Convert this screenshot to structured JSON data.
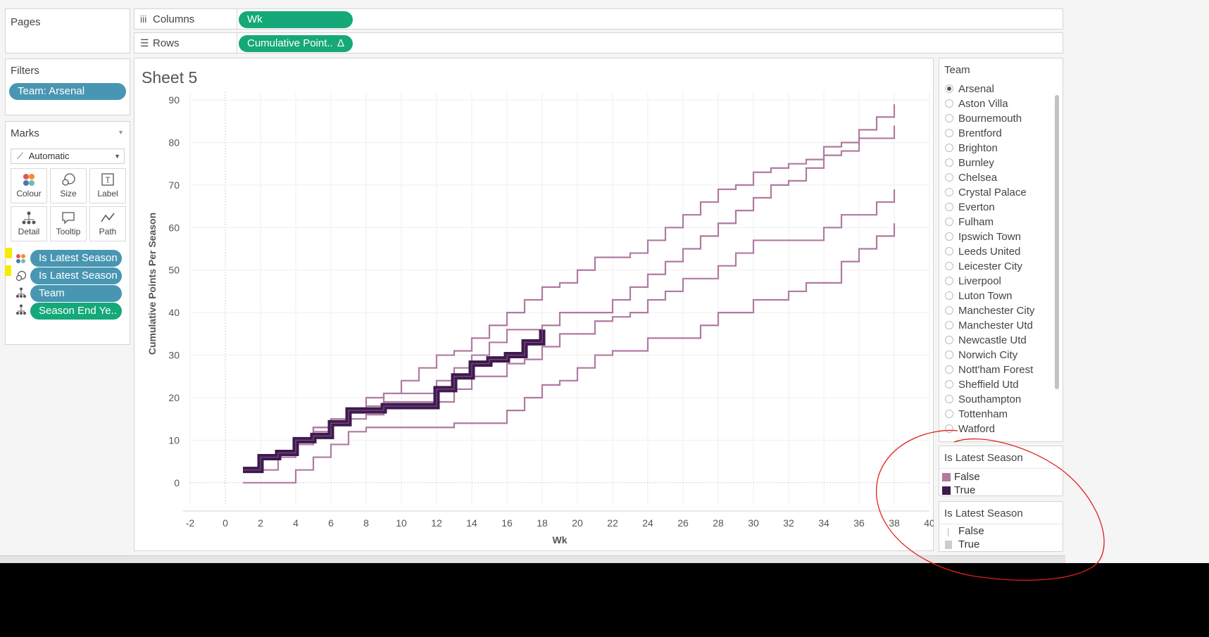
{
  "shelves": {
    "columns": {
      "label": "Columns",
      "pill": "Wk"
    },
    "rows": {
      "label": "Rows",
      "pill": "Cumulative Point..",
      "delta_icon": "Δ"
    }
  },
  "pages": {
    "title": "Pages"
  },
  "filters": {
    "title": "Filters",
    "items": [
      "Team: Arsenal"
    ]
  },
  "marks": {
    "title": "Marks",
    "type": "Automatic",
    "buttons": [
      {
        "label": "Colour",
        "icon": "colour-icon"
      },
      {
        "label": "Size",
        "icon": "size-icon"
      },
      {
        "label": "Label",
        "icon": "label-icon"
      },
      {
        "label": "Detail",
        "icon": "detail-icon"
      },
      {
        "label": "Tooltip",
        "icon": "tooltip-icon"
      },
      {
        "label": "Path",
        "icon": "path-icon"
      }
    ],
    "fields": [
      {
        "label": "Is Latest Season",
        "icon": "colour-icon",
        "color": "blue"
      },
      {
        "label": "Is Latest Season",
        "icon": "size-icon",
        "color": "blue"
      },
      {
        "label": "Team",
        "icon": "detail-icon",
        "color": "blue"
      },
      {
        "label": "Season End Ye..",
        "icon": "detail-icon",
        "color": "green"
      }
    ]
  },
  "sheet": {
    "title": "Sheet 5"
  },
  "team_filter": {
    "title": "Team",
    "selected": "Arsenal",
    "items": [
      "Arsenal",
      "Aston Villa",
      "Bournemouth",
      "Brentford",
      "Brighton",
      "Burnley",
      "Chelsea",
      "Crystal Palace",
      "Everton",
      "Fulham",
      "Ipswich Town",
      "Leeds United",
      "Leicester City",
      "Liverpool",
      "Luton Town",
      "Manchester City",
      "Manchester Utd",
      "Newcastle Utd",
      "Norwich City",
      "Nott'ham Forest",
      "Sheffield Utd",
      "Southampton",
      "Tottenham",
      "Watford"
    ]
  },
  "colour_legend": {
    "title": "Is Latest Season",
    "items": [
      {
        "label": "False",
        "color": "#b07aa1"
      },
      {
        "label": "True",
        "color": "#3d1a4f"
      }
    ]
  },
  "size_legend": {
    "title": "Is Latest Season",
    "items": [
      {
        "label": "False"
      },
      {
        "label": "True"
      }
    ]
  },
  "colors": {
    "accent_blue": "#4996b2",
    "accent_green": "#15a878",
    "false_series": "#b07aa1",
    "true_series": "#3d1a4f",
    "annotation": "#e0201a"
  },
  "chart_data": {
    "type": "line",
    "step": true,
    "xlabel": "Wk",
    "ylabel": "Cumulative Points Per Season",
    "xlim": [
      -2,
      40
    ],
    "ylim": [
      -5,
      92
    ],
    "xticks": [
      -2,
      0,
      2,
      4,
      6,
      8,
      10,
      12,
      14,
      16,
      18,
      20,
      22,
      24,
      26,
      28,
      30,
      32,
      34,
      36,
      38,
      40
    ],
    "yticks": [
      0,
      10,
      20,
      30,
      40,
      50,
      60,
      70,
      80,
      90
    ],
    "grid": true,
    "series": [
      {
        "latest": false,
        "x": [
          1,
          2,
          3,
          4,
          5,
          6,
          7,
          8,
          9,
          10,
          11,
          12,
          13,
          14,
          15,
          16,
          17,
          18,
          19,
          20,
          21,
          22,
          23,
          24,
          25,
          26,
          27,
          28,
          29,
          30,
          31,
          32,
          33,
          34,
          35,
          36,
          37,
          38
        ],
        "y": [
          3,
          6,
          7,
          10,
          13,
          14,
          17,
          18,
          21,
          24,
          27,
          30,
          31,
          34,
          37,
          40,
          43,
          46,
          47,
          50,
          53,
          53,
          54,
          57,
          60,
          63,
          66,
          69,
          70,
          73,
          74,
          75,
          76,
          79,
          80,
          83,
          86,
          89
        ]
      },
      {
        "latest": false,
        "x": [
          1,
          2,
          3,
          4,
          5,
          6,
          7,
          8,
          9,
          10,
          11,
          12,
          13,
          14,
          15,
          16,
          17,
          18,
          19,
          20,
          21,
          22,
          23,
          24,
          25,
          26,
          27,
          28,
          29,
          30,
          31,
          32,
          33,
          34,
          35,
          36,
          37,
          38
        ],
        "y": [
          3,
          6,
          7,
          10,
          13,
          14,
          17,
          20,
          21,
          21,
          21,
          24,
          27,
          30,
          33,
          36,
          36,
          37,
          40,
          40,
          40,
          43,
          46,
          49,
          52,
          55,
          58,
          61,
          64,
          67,
          70,
          71,
          74,
          77,
          78,
          81,
          81,
          84
        ]
      },
      {
        "latest": false,
        "x": [
          1,
          2,
          3,
          4,
          5,
          6,
          7,
          8,
          9,
          10,
          11,
          12,
          13,
          14,
          15,
          16,
          17,
          18,
          19,
          20,
          21,
          22,
          23,
          24,
          25,
          26,
          27,
          28,
          29,
          30,
          31,
          32,
          33,
          34,
          35,
          36,
          37,
          38
        ],
        "y": [
          3,
          3,
          6,
          9,
          12,
          15,
          15,
          16,
          19,
          19,
          19,
          19,
          22,
          25,
          25,
          28,
          29,
          32,
          35,
          35,
          38,
          39,
          40,
          43,
          45,
          48,
          48,
          51,
          54,
          57,
          57,
          57,
          57,
          60,
          63,
          63,
          66,
          69
        ]
      },
      {
        "latest": false,
        "x": [
          1,
          2,
          3,
          4,
          5,
          6,
          7,
          8,
          9,
          10,
          11,
          12,
          13,
          14,
          15,
          16,
          17,
          18,
          19,
          20,
          21,
          22,
          23,
          24,
          25,
          26,
          27,
          28,
          29,
          30,
          31,
          32,
          33,
          34,
          35,
          36,
          37,
          38
        ],
        "y": [
          0,
          0,
          0,
          3,
          6,
          9,
          12,
          13,
          13,
          13,
          13,
          13,
          14,
          14,
          14,
          17,
          20,
          23,
          24,
          27,
          30,
          31,
          31,
          34,
          34,
          34,
          37,
          40,
          40,
          43,
          43,
          45,
          47,
          47,
          52,
          55,
          58,
          61
        ]
      },
      {
        "latest": true,
        "x": [
          1,
          2,
          3,
          4,
          5,
          6,
          7,
          8,
          9,
          10,
          11,
          12,
          13,
          14,
          15,
          16,
          17,
          18
        ],
        "y": [
          3,
          6,
          7,
          10,
          11,
          14,
          17,
          17,
          18,
          18,
          18,
          22,
          25,
          28,
          29,
          30,
          33,
          36
        ]
      }
    ]
  }
}
